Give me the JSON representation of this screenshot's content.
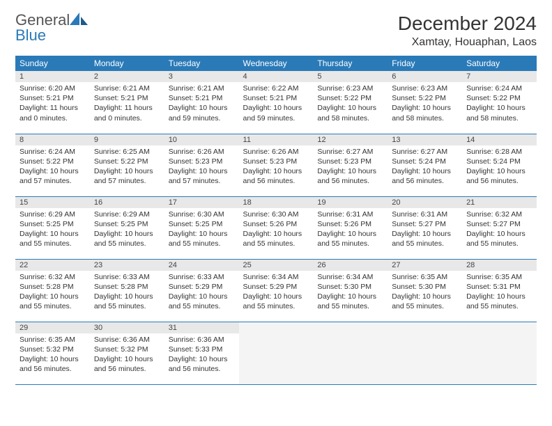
{
  "brand": {
    "word1": "General",
    "word2": "Blue"
  },
  "title": "December 2024",
  "location": "Xamtay, Houaphan, Laos",
  "colors": {
    "header_bg": "#2a7ab8",
    "header_text": "#ffffff",
    "daynum_bg": "#e8e8e8",
    "border": "#2a7ab8",
    "text": "#333333",
    "brand_gray": "#555555",
    "brand_blue": "#2a7ab8"
  },
  "day_headers": [
    "Sunday",
    "Monday",
    "Tuesday",
    "Wednesday",
    "Thursday",
    "Friday",
    "Saturday"
  ],
  "weeks": [
    [
      {
        "n": "1",
        "sr": "Sunrise: 6:20 AM",
        "ss": "Sunset: 5:21 PM",
        "dl": "Daylight: 11 hours and 0 minutes."
      },
      {
        "n": "2",
        "sr": "Sunrise: 6:21 AM",
        "ss": "Sunset: 5:21 PM",
        "dl": "Daylight: 11 hours and 0 minutes."
      },
      {
        "n": "3",
        "sr": "Sunrise: 6:21 AM",
        "ss": "Sunset: 5:21 PM",
        "dl": "Daylight: 10 hours and 59 minutes."
      },
      {
        "n": "4",
        "sr": "Sunrise: 6:22 AM",
        "ss": "Sunset: 5:21 PM",
        "dl": "Daylight: 10 hours and 59 minutes."
      },
      {
        "n": "5",
        "sr": "Sunrise: 6:23 AM",
        "ss": "Sunset: 5:22 PM",
        "dl": "Daylight: 10 hours and 58 minutes."
      },
      {
        "n": "6",
        "sr": "Sunrise: 6:23 AM",
        "ss": "Sunset: 5:22 PM",
        "dl": "Daylight: 10 hours and 58 minutes."
      },
      {
        "n": "7",
        "sr": "Sunrise: 6:24 AM",
        "ss": "Sunset: 5:22 PM",
        "dl": "Daylight: 10 hours and 58 minutes."
      }
    ],
    [
      {
        "n": "8",
        "sr": "Sunrise: 6:24 AM",
        "ss": "Sunset: 5:22 PM",
        "dl": "Daylight: 10 hours and 57 minutes."
      },
      {
        "n": "9",
        "sr": "Sunrise: 6:25 AM",
        "ss": "Sunset: 5:22 PM",
        "dl": "Daylight: 10 hours and 57 minutes."
      },
      {
        "n": "10",
        "sr": "Sunrise: 6:26 AM",
        "ss": "Sunset: 5:23 PM",
        "dl": "Daylight: 10 hours and 57 minutes."
      },
      {
        "n": "11",
        "sr": "Sunrise: 6:26 AM",
        "ss": "Sunset: 5:23 PM",
        "dl": "Daylight: 10 hours and 56 minutes."
      },
      {
        "n": "12",
        "sr": "Sunrise: 6:27 AM",
        "ss": "Sunset: 5:23 PM",
        "dl": "Daylight: 10 hours and 56 minutes."
      },
      {
        "n": "13",
        "sr": "Sunrise: 6:27 AM",
        "ss": "Sunset: 5:24 PM",
        "dl": "Daylight: 10 hours and 56 minutes."
      },
      {
        "n": "14",
        "sr": "Sunrise: 6:28 AM",
        "ss": "Sunset: 5:24 PM",
        "dl": "Daylight: 10 hours and 56 minutes."
      }
    ],
    [
      {
        "n": "15",
        "sr": "Sunrise: 6:29 AM",
        "ss": "Sunset: 5:25 PM",
        "dl": "Daylight: 10 hours and 55 minutes."
      },
      {
        "n": "16",
        "sr": "Sunrise: 6:29 AM",
        "ss": "Sunset: 5:25 PM",
        "dl": "Daylight: 10 hours and 55 minutes."
      },
      {
        "n": "17",
        "sr": "Sunrise: 6:30 AM",
        "ss": "Sunset: 5:25 PM",
        "dl": "Daylight: 10 hours and 55 minutes."
      },
      {
        "n": "18",
        "sr": "Sunrise: 6:30 AM",
        "ss": "Sunset: 5:26 PM",
        "dl": "Daylight: 10 hours and 55 minutes."
      },
      {
        "n": "19",
        "sr": "Sunrise: 6:31 AM",
        "ss": "Sunset: 5:26 PM",
        "dl": "Daylight: 10 hours and 55 minutes."
      },
      {
        "n": "20",
        "sr": "Sunrise: 6:31 AM",
        "ss": "Sunset: 5:27 PM",
        "dl": "Daylight: 10 hours and 55 minutes."
      },
      {
        "n": "21",
        "sr": "Sunrise: 6:32 AM",
        "ss": "Sunset: 5:27 PM",
        "dl": "Daylight: 10 hours and 55 minutes."
      }
    ],
    [
      {
        "n": "22",
        "sr": "Sunrise: 6:32 AM",
        "ss": "Sunset: 5:28 PM",
        "dl": "Daylight: 10 hours and 55 minutes."
      },
      {
        "n": "23",
        "sr": "Sunrise: 6:33 AM",
        "ss": "Sunset: 5:28 PM",
        "dl": "Daylight: 10 hours and 55 minutes."
      },
      {
        "n": "24",
        "sr": "Sunrise: 6:33 AM",
        "ss": "Sunset: 5:29 PM",
        "dl": "Daylight: 10 hours and 55 minutes."
      },
      {
        "n": "25",
        "sr": "Sunrise: 6:34 AM",
        "ss": "Sunset: 5:29 PM",
        "dl": "Daylight: 10 hours and 55 minutes."
      },
      {
        "n": "26",
        "sr": "Sunrise: 6:34 AM",
        "ss": "Sunset: 5:30 PM",
        "dl": "Daylight: 10 hours and 55 minutes."
      },
      {
        "n": "27",
        "sr": "Sunrise: 6:35 AM",
        "ss": "Sunset: 5:30 PM",
        "dl": "Daylight: 10 hours and 55 minutes."
      },
      {
        "n": "28",
        "sr": "Sunrise: 6:35 AM",
        "ss": "Sunset: 5:31 PM",
        "dl": "Daylight: 10 hours and 55 minutes."
      }
    ],
    [
      {
        "n": "29",
        "sr": "Sunrise: 6:35 AM",
        "ss": "Sunset: 5:32 PM",
        "dl": "Daylight: 10 hours and 56 minutes."
      },
      {
        "n": "30",
        "sr": "Sunrise: 6:36 AM",
        "ss": "Sunset: 5:32 PM",
        "dl": "Daylight: 10 hours and 56 minutes."
      },
      {
        "n": "31",
        "sr": "Sunrise: 6:36 AM",
        "ss": "Sunset: 5:33 PM",
        "dl": "Daylight: 10 hours and 56 minutes."
      },
      null,
      null,
      null,
      null
    ]
  ]
}
